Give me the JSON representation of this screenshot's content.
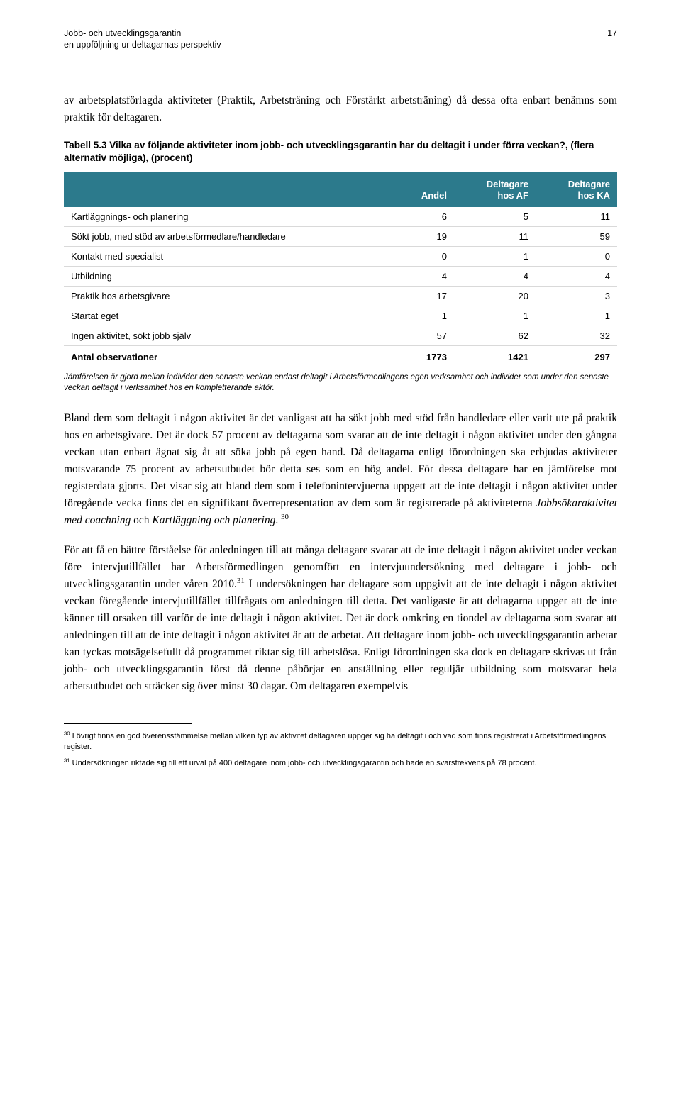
{
  "page_number": "17",
  "header": {
    "title_line": "Jobb- och utvecklingsgarantin",
    "subtitle": "en uppföljning ur deltagarnas perspektiv"
  },
  "intro_para": "av arbetsplatsförlagda aktiviteter (Praktik, Arbetsträning och Förstärkt arbetsträning) då dessa ofta enbart benämns som praktik för deltagaren.",
  "table": {
    "caption": "Tabell 5.3 Vilka av följande aktiviteter inom jobb- och utvecklingsgarantin har du deltagit i under förra veckan?, (flera alternativ möjliga), (procent)",
    "columns": [
      "",
      "Andel",
      "Deltagare hos AF",
      "Deltagare hos KA"
    ],
    "rows": [
      [
        "Kartläggnings- och planering",
        "6",
        "5",
        "11"
      ],
      [
        "Sökt jobb, med stöd av arbetsförmedlare/handledare",
        "19",
        "11",
        "59"
      ],
      [
        "Kontakt med specialist",
        "0",
        "1",
        "0"
      ],
      [
        "Utbildning",
        "4",
        "4",
        "4"
      ],
      [
        "Praktik hos arbetsgivare",
        "17",
        "20",
        "3"
      ],
      [
        "Startat eget",
        "1",
        "1",
        "1"
      ],
      [
        "Ingen aktivitet, sökt jobb själv",
        "57",
        "62",
        "32"
      ]
    ],
    "total_row": [
      "Antal observationer",
      "1773",
      "1421",
      "297"
    ],
    "note": "Jämförelsen är gjord mellan individer den senaste veckan endast deltagit i Arbetsförmedlingens egen verksamhet och individer som under den senaste veckan deltagit i verksamhet hos en kompletterande aktör.",
    "header_bg": "#2c7a8c"
  },
  "para2_pre": "Bland dem som deltagit i någon aktivitet är det vanligast att ha sökt jobb med stöd från handledare eller varit ute på praktik hos en arbetsgivare. Det är dock 57 procent av deltagarna som svarar att de inte deltagit i någon aktivitet under den gångna veckan utan enbart ägnat sig åt att söka jobb på egen hand. Då deltagarna enligt förordningen ska erbjudas aktiviteter motsvarande 75 procent av arbetsutbudet bör detta ses som en hög andel. För dessa deltagare har en jämförelse mot registerdata gjorts. Det visar sig att bland dem som i telefonintervjuerna uppgett att de inte deltagit i någon aktivitet under föregående vecka finns det en signifikant överrepresentation av dem som är registrerade på aktiviteterna ",
  "para2_italic1": "Jobbsökaraktivitet med coachning",
  "para2_mid": " och ",
  "para2_italic2": "Kartläggning och planering",
  "para2_post": ". ",
  "para2_fn": "30",
  "para3_pre": "För att få en bättre förståelse för anledningen till att många deltagare svarar att de inte deltagit i någon aktivitet under veckan före intervjutillfället har Arbetsförmedlingen genomfört en intervjuundersökning med deltagare i jobb- och utvecklingsgarantin under våren 2010.",
  "para3_fn": "31",
  "para3_post": " I undersökningen har deltagare som uppgivit att de inte deltagit i någon aktivitet veckan föregående intervjutillfället tillfrågats om anledningen till detta. Det vanligaste är att deltagarna uppger att de inte känner till orsaken till varför de inte deltagit i någon aktivitet. Det är dock omkring en tiondel av deltagarna som svarar att anledningen till att de inte deltagit i någon aktivitet är att de arbetat. Att deltagare inom jobb- och utvecklingsgarantin arbetar kan tyckas motsägelsefullt då programmet riktar sig till arbetslösa. Enligt förordningen ska dock en deltagare skrivas ut från jobb- och utvecklingsgarantin först då denne påbörjar en anställning eller reguljär utbildning som motsvarar hela arbetsutbudet och sträcker sig över minst 30 dagar. Om deltagaren exempelvis",
  "footnotes": [
    {
      "num": "30",
      "text": "I övrigt finns en god överensstämmelse mellan vilken typ av aktivitet deltagaren uppger sig ha deltagit i och vad som finns registrerat i Arbetsförmedlingens register."
    },
    {
      "num": "31",
      "text": "Undersökningen riktade sig till ett urval på 400 deltagare inom jobb- och utvecklingsgarantin och hade en svarsfrekvens på 78 procent."
    }
  ]
}
